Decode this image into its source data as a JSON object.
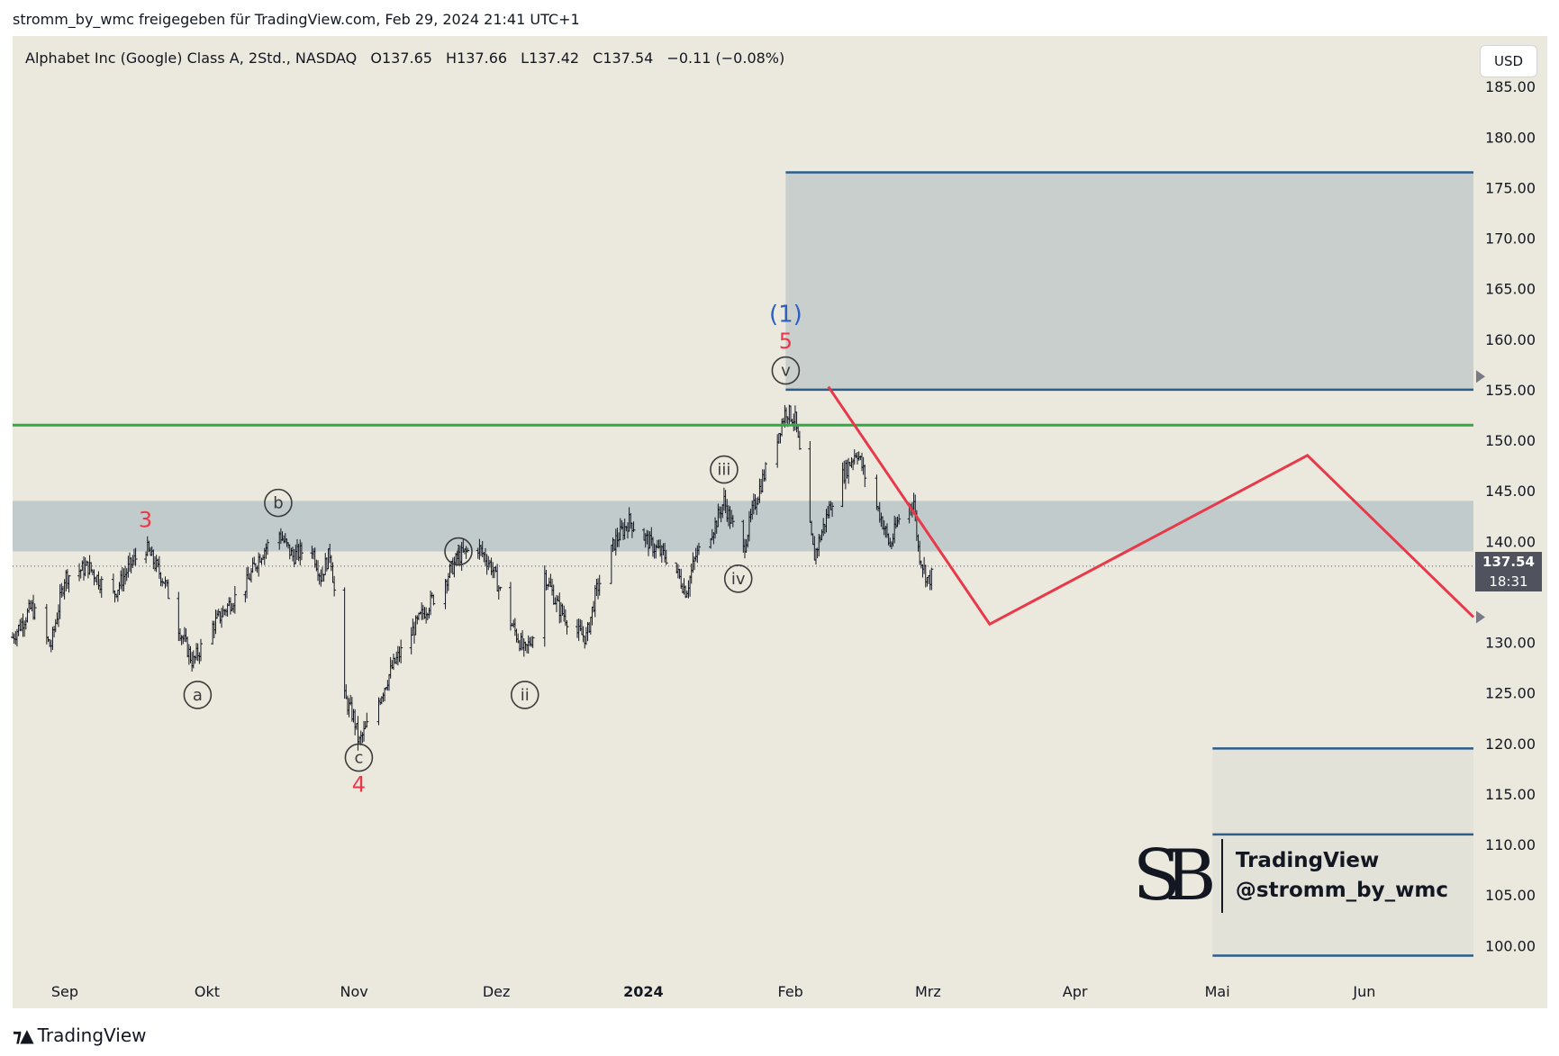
{
  "header": {
    "publish_line": "stromm_by_wmc freigegeben für TradingView.com, Feb 29, 2024 21:41 UTC+1"
  },
  "legend": {
    "symbol": "Alphabet Inc (Google) Class A, 2Std., NASDAQ",
    "open": "O137.65",
    "high": "H137.66",
    "low": "L137.42",
    "close": "C137.54",
    "change": "−0.11 (−0.08%)"
  },
  "currency": "USD",
  "last_price": {
    "price": "137.54",
    "countdown": "18:31"
  },
  "watermark": {
    "monogram": "SB",
    "line1": "TradingView",
    "line2": "@stromm_by_wmc"
  },
  "footer": {
    "brand": "TradingView"
  },
  "colors": {
    "background": "#ebe8dd",
    "zone_fill": "#c8cfcd",
    "zone_border": "#2a5d8c",
    "support_green": "#33a844",
    "projection_red": "#e8394a",
    "wave_red": "#e8394a",
    "wave_blue": "#2d5fc2",
    "candle": "#131722"
  },
  "chart_data": {
    "type": "candlestick",
    "title": "Alphabet Inc (Google) Class A, 2Std., NASDAQ",
    "ylim": [
      97.0,
      190.0
    ],
    "yticks": [
      185,
      180,
      175,
      170,
      165,
      160,
      155,
      150,
      145,
      140,
      130,
      125,
      120,
      115,
      110,
      105,
      100
    ],
    "ytick_labels": [
      "185.00",
      "180.00",
      "175.00",
      "170.00",
      "165.00",
      "160.00",
      "155.00",
      "150.00",
      "145.00",
      "140.00",
      "130.00",
      "125.00",
      "120.00",
      "115.00",
      "110.00",
      "105.00",
      "100.00"
    ],
    "x_range": [
      "2023-08-21",
      "2024-06-24"
    ],
    "x_ticks": [
      {
        "date": "2023-09-01",
        "label": "Sep",
        "bold": false
      },
      {
        "date": "2023-10-01",
        "label": "Okt",
        "bold": false
      },
      {
        "date": "2023-11-01",
        "label": "Nov",
        "bold": false
      },
      {
        "date": "2023-12-01",
        "label": "Dez",
        "bold": false
      },
      {
        "date": "2024-01-01",
        "label": "2024",
        "bold": true
      },
      {
        "date": "2024-02-01",
        "label": "Feb",
        "bold": false
      },
      {
        "date": "2024-03-01",
        "label": "Mrz",
        "bold": false
      },
      {
        "date": "2024-04-01",
        "label": "Apr",
        "bold": false
      },
      {
        "date": "2024-05-01",
        "label": "Mai",
        "bold": false
      },
      {
        "date": "2024-06-01",
        "label": "Jun",
        "bold": false
      }
    ],
    "price_path": [
      [
        "2023-08-21",
        130.5
      ],
      [
        "2023-08-25",
        133.5
      ],
      [
        "2023-08-29",
        129.5
      ],
      [
        "2023-09-01",
        136.5
      ],
      [
        "2023-09-06",
        137.5
      ],
      [
        "2023-09-11",
        134.5
      ],
      [
        "2023-09-15",
        137.8
      ],
      [
        "2023-09-18",
        139.5
      ],
      [
        "2023-09-22",
        136.0
      ],
      [
        "2023-09-25",
        131.5
      ],
      [
        "2023-09-28",
        128.0
      ],
      [
        "2023-10-02",
        131.5
      ],
      [
        "2023-10-06",
        134.0
      ],
      [
        "2023-10-09",
        135.5
      ],
      [
        "2023-10-12",
        138.5
      ],
      [
        "2023-10-16",
        141.0
      ],
      [
        "2023-10-19",
        138.5
      ],
      [
        "2023-10-23",
        139.5
      ],
      [
        "2023-10-25",
        136.5
      ],
      [
        "2023-10-27",
        139.0
      ],
      [
        "2023-10-30",
        124.5
      ],
      [
        "2023-11-01",
        122.5
      ],
      [
        "2023-11-02",
        120.0
      ],
      [
        "2023-11-06",
        124.0
      ],
      [
        "2023-11-09",
        127.5
      ],
      [
        "2023-11-15",
        132.5
      ],
      [
        "2023-11-20",
        136.0
      ],
      [
        "2023-11-23",
        138.5
      ],
      [
        "2023-11-27",
        139.5
      ],
      [
        "2023-11-30",
        137.5
      ],
      [
        "2023-12-04",
        132.0
      ],
      [
        "2023-12-07",
        129.0
      ],
      [
        "2023-12-09",
        131.0
      ],
      [
        "2023-12-11",
        137.0
      ],
      [
        "2023-12-14",
        133.5
      ],
      [
        "2023-12-18",
        131.0
      ],
      [
        "2023-12-20",
        130.5
      ],
      [
        "2023-12-22",
        135.0
      ],
      [
        "2023-12-26",
        140.0
      ],
      [
        "2023-12-29",
        142.0
      ],
      [
        "2024-01-03",
        139.5
      ],
      [
        "2024-01-07",
        138.0
      ],
      [
        "2024-01-10",
        135.0
      ],
      [
        "2024-01-12",
        138.5
      ],
      [
        "2024-01-16",
        141.5
      ],
      [
        "2024-01-18",
        144.0
      ],
      [
        "2024-01-19",
        142.5
      ],
      [
        "2024-01-22",
        139.0
      ],
      [
        "2024-01-24",
        143.0
      ],
      [
        "2024-01-26",
        146.0
      ],
      [
        "2024-01-29",
        150.0
      ],
      [
        "2024-01-31",
        153.0
      ],
      [
        "2024-02-02",
        152.0
      ],
      [
        "2024-02-05",
        141.5
      ],
      [
        "2024-02-06",
        138.5
      ],
      [
        "2024-02-08",
        141.5
      ],
      [
        "2024-02-10",
        144.5
      ],
      [
        "2024-02-12",
        146.5
      ],
      [
        "2024-02-15",
        149.0
      ],
      [
        "2024-02-17",
        146.0
      ],
      [
        "2024-02-20",
        142.5
      ],
      [
        "2024-02-22",
        139.5
      ],
      [
        "2024-02-24",
        142.5
      ],
      [
        "2024-02-27",
        144.0
      ],
      [
        "2024-02-28",
        139.0
      ],
      [
        "2024-03-01",
        136.0
      ],
      [
        "2024-03-03",
        137.5
      ]
    ],
    "support_line": {
      "price": 151.5,
      "from": "2023-08-21",
      "to": "2024-06-24"
    },
    "zones": [
      {
        "name": "upper-target",
        "top": 176.5,
        "bottom": 155.0,
        "from": "2024-01-31",
        "to": "2024-06-24"
      },
      {
        "name": "middle-band",
        "top": 144.0,
        "bottom": 139.0,
        "from": "2023-08-21",
        "to": "2024-06-24"
      },
      {
        "name": "lower-target",
        "top": 119.5,
        "bottom": 99.0,
        "from": "2024-04-30",
        "to": "2024-06-24",
        "inner_line": 111.0
      }
    ],
    "projection": [
      [
        "2024-02-09",
        155.3
      ],
      [
        "2024-03-14",
        131.8
      ],
      [
        "2024-05-20",
        148.5
      ],
      [
        "2024-06-24",
        132.5
      ]
    ],
    "dashed_price_line": 137.54,
    "wave_labels": [
      {
        "text": "3",
        "date": "2023-09-18",
        "price": 142.2,
        "style": "red"
      },
      {
        "text": "b",
        "date": "2023-10-16",
        "price": 143.8,
        "style": "circle"
      },
      {
        "text": "a",
        "date": "2023-09-29",
        "price": 124.8,
        "style": "circle"
      },
      {
        "text": "c",
        "date": "2023-11-02",
        "price": 118.6,
        "style": "circle"
      },
      {
        "text": "4",
        "date": "2023-11-02",
        "price": 116.0,
        "style": "red"
      },
      {
        "text": "i",
        "date": "2023-11-23",
        "price": 139.0,
        "style": "circle"
      },
      {
        "text": "ii",
        "date": "2023-12-07",
        "price": 124.8,
        "style": "circle"
      },
      {
        "text": "iii",
        "date": "2024-01-18",
        "price": 147.1,
        "style": "circle"
      },
      {
        "text": "iv",
        "date": "2024-01-21",
        "price": 136.3,
        "style": "circle"
      },
      {
        "text": "v",
        "date": "2024-01-31",
        "price": 156.9,
        "style": "circle"
      },
      {
        "text": "5",
        "date": "2024-01-31",
        "price": 159.9,
        "style": "red"
      },
      {
        "text": "(1)",
        "date": "2024-01-31",
        "price": 162.5,
        "style": "blue"
      }
    ]
  }
}
